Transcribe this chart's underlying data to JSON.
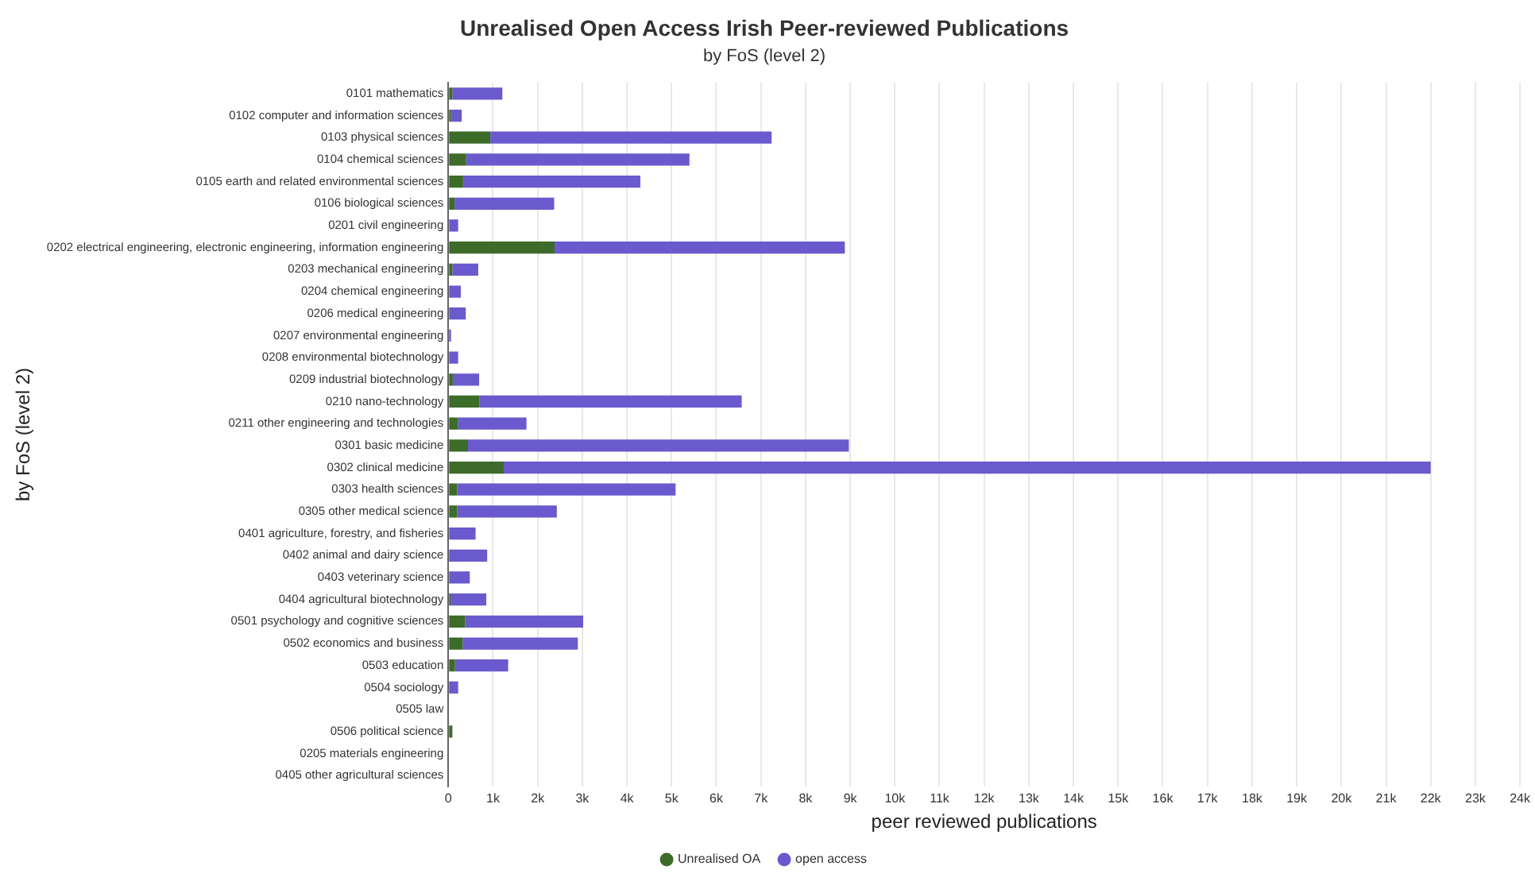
{
  "chart_data": {
    "type": "bar",
    "orientation": "horizontal",
    "stacked": true,
    "title": "Unrealised Open Access Irish Peer-reviewed Publications",
    "subtitle": "by FoS (level 2)",
    "xlabel": "peer reviewed publications",
    "ylabel": "by FoS (level 2)",
    "categories": [
      "0101 mathematics",
      "0102 computer and information sciences",
      "0103 physical sciences",
      "0104 chemical sciences",
      "0105 earth and related environmental sciences",
      "0106 biological sciences",
      "0201 civil engineering",
      "0202 electrical engineering, electronic engineering, information engineering",
      "0203 mechanical engineering",
      "0204 chemical engineering",
      "0206 medical engineering",
      "0207 environmental engineering",
      "0208 environmental biotechnology",
      "0209 industrial biotechnology",
      "0210 nano-technology",
      "0211 other engineering and technologies",
      "0301 basic medicine",
      "0302 clinical medicine",
      "0303 health sciences",
      "0305 other medical science",
      "0401 agriculture, forestry, and fisheries",
      "0402 animal and dairy science",
      "0403 veterinary science",
      "0404 agricultural biotechnology",
      "0501 psychology and cognitive sciences",
      "0502 economics and business",
      "0503 education",
      "0504 sociology",
      "0505 law",
      "0506 political science",
      "0205 materials engineering",
      "0405 other agricultural sciences"
    ],
    "series": [
      {
        "name": "Unrealised OA",
        "color": "#3d6b2a",
        "values": [
          90,
          60,
          940,
          400,
          330,
          140,
          0,
          2380,
          90,
          0,
          0,
          0,
          0,
          100,
          700,
          220,
          440,
          1240,
          200,
          200,
          0,
          0,
          0,
          50,
          380,
          320,
          150,
          0,
          0,
          90,
          0,
          0
        ]
      },
      {
        "name": "open access",
        "color": "#6a5acd",
        "values": [
          1120,
          240,
          6300,
          5000,
          3970,
          2230,
          220,
          6500,
          580,
          280,
          390,
          60,
          220,
          590,
          5870,
          1530,
          8530,
          20760,
          4890,
          2230,
          610,
          870,
          480,
          800,
          2640,
          2580,
          1190,
          220,
          0,
          0,
          0,
          0
        ]
      }
    ],
    "xlim": [
      0,
      24000
    ],
    "xticks": [
      0,
      {
        "value": 1000,
        "label": "1k"
      },
      {
        "value": 2000,
        "label": "2k"
      },
      {
        "value": 3000,
        "label": "3k"
      },
      {
        "value": 4000,
        "label": "4k"
      },
      {
        "value": 5000,
        "label": "5k"
      },
      {
        "value": 6000,
        "label": "6k"
      },
      {
        "value": 7000,
        "label": "7k"
      },
      {
        "value": 8000,
        "label": "8k"
      },
      {
        "value": 9000,
        "label": "9k"
      },
      {
        "value": 10000,
        "label": "10k"
      },
      {
        "value": 11000,
        "label": "11k"
      },
      {
        "value": 12000,
        "label": "12k"
      },
      {
        "value": 13000,
        "label": "13k"
      },
      {
        "value": 14000,
        "label": "14k"
      },
      {
        "value": 15000,
        "label": "15k"
      },
      {
        "value": 16000,
        "label": "16k"
      },
      {
        "value": 17000,
        "label": "17k"
      },
      {
        "value": 18000,
        "label": "18k"
      },
      {
        "value": 19000,
        "label": "19k"
      },
      {
        "value": 20000,
        "label": "20k"
      },
      {
        "value": 21000,
        "label": "21k"
      },
      {
        "value": 22000,
        "label": "22k"
      },
      {
        "value": 23000,
        "label": "23k"
      },
      {
        "value": 24000,
        "label": "24k"
      }
    ],
    "grid": "x",
    "legend": "bottom"
  }
}
